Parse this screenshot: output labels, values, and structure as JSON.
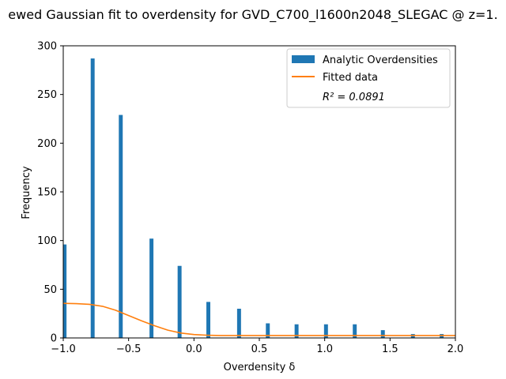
{
  "chart_data": {
    "type": "bar",
    "title": "ewed Gaussian fit to overdensity for GVD_C700_l1600n2048_SLEGAC @ z=1.",
    "xlabel": "Overdensity δ",
    "ylabel": "Frequency",
    "xlim": [
      -1.0,
      2.0
    ],
    "ylim": [
      0,
      300
    ],
    "xticks": [
      -1.0,
      -0.5,
      0.0,
      0.5,
      1.0,
      1.5,
      2.0
    ],
    "xtick_labels": [
      "−1.0",
      "−0.5",
      "0.0",
      "0.5",
      "1.0",
      "1.5",
      "2.0"
    ],
    "yticks": [
      0,
      50,
      100,
      150,
      200,
      250,
      300
    ],
    "ytick_labels": [
      "0",
      "50",
      "100",
      "150",
      "200",
      "250",
      "300"
    ],
    "legend_position": "top-right",
    "legend": {
      "bars": "Analytic Overdensities",
      "line": "Fitted data",
      "r2_label": "R² = 0.0891"
    },
    "bar_color": "#1f77b4",
    "line_color": "#ff7f0e",
    "bars": [
      {
        "x": -0.99,
        "y": 96
      },
      {
        "x": -0.775,
        "y": 287
      },
      {
        "x": -0.56,
        "y": 229
      },
      {
        "x": -0.325,
        "y": 102
      },
      {
        "x": -0.11,
        "y": 74
      },
      {
        "x": 0.11,
        "y": 37
      },
      {
        "x": 0.345,
        "y": 30
      },
      {
        "x": 0.565,
        "y": 15
      },
      {
        "x": 0.785,
        "y": 14
      },
      {
        "x": 1.01,
        "y": 14
      },
      {
        "x": 1.23,
        "y": 14
      },
      {
        "x": 1.445,
        "y": 8
      },
      {
        "x": 1.675,
        "y": 4
      },
      {
        "x": 1.895,
        "y": 4
      }
    ],
    "bar_width": 0.03,
    "fit": {
      "x": [
        -1.0,
        -0.9,
        -0.8,
        -0.7,
        -0.6,
        -0.5,
        -0.4,
        -0.3,
        -0.2,
        -0.1,
        0.0,
        0.1,
        0.2,
        0.4,
        0.6,
        1.0,
        1.5,
        2.0
      ],
      "y": [
        35.5,
        35.2,
        34.5,
        32.5,
        28.5,
        23.0,
        17.5,
        12.5,
        8.0,
        5.0,
        3.5,
        2.8,
        2.5,
        2.5,
        2.5,
        2.5,
        2.5,
        2.5
      ]
    }
  }
}
